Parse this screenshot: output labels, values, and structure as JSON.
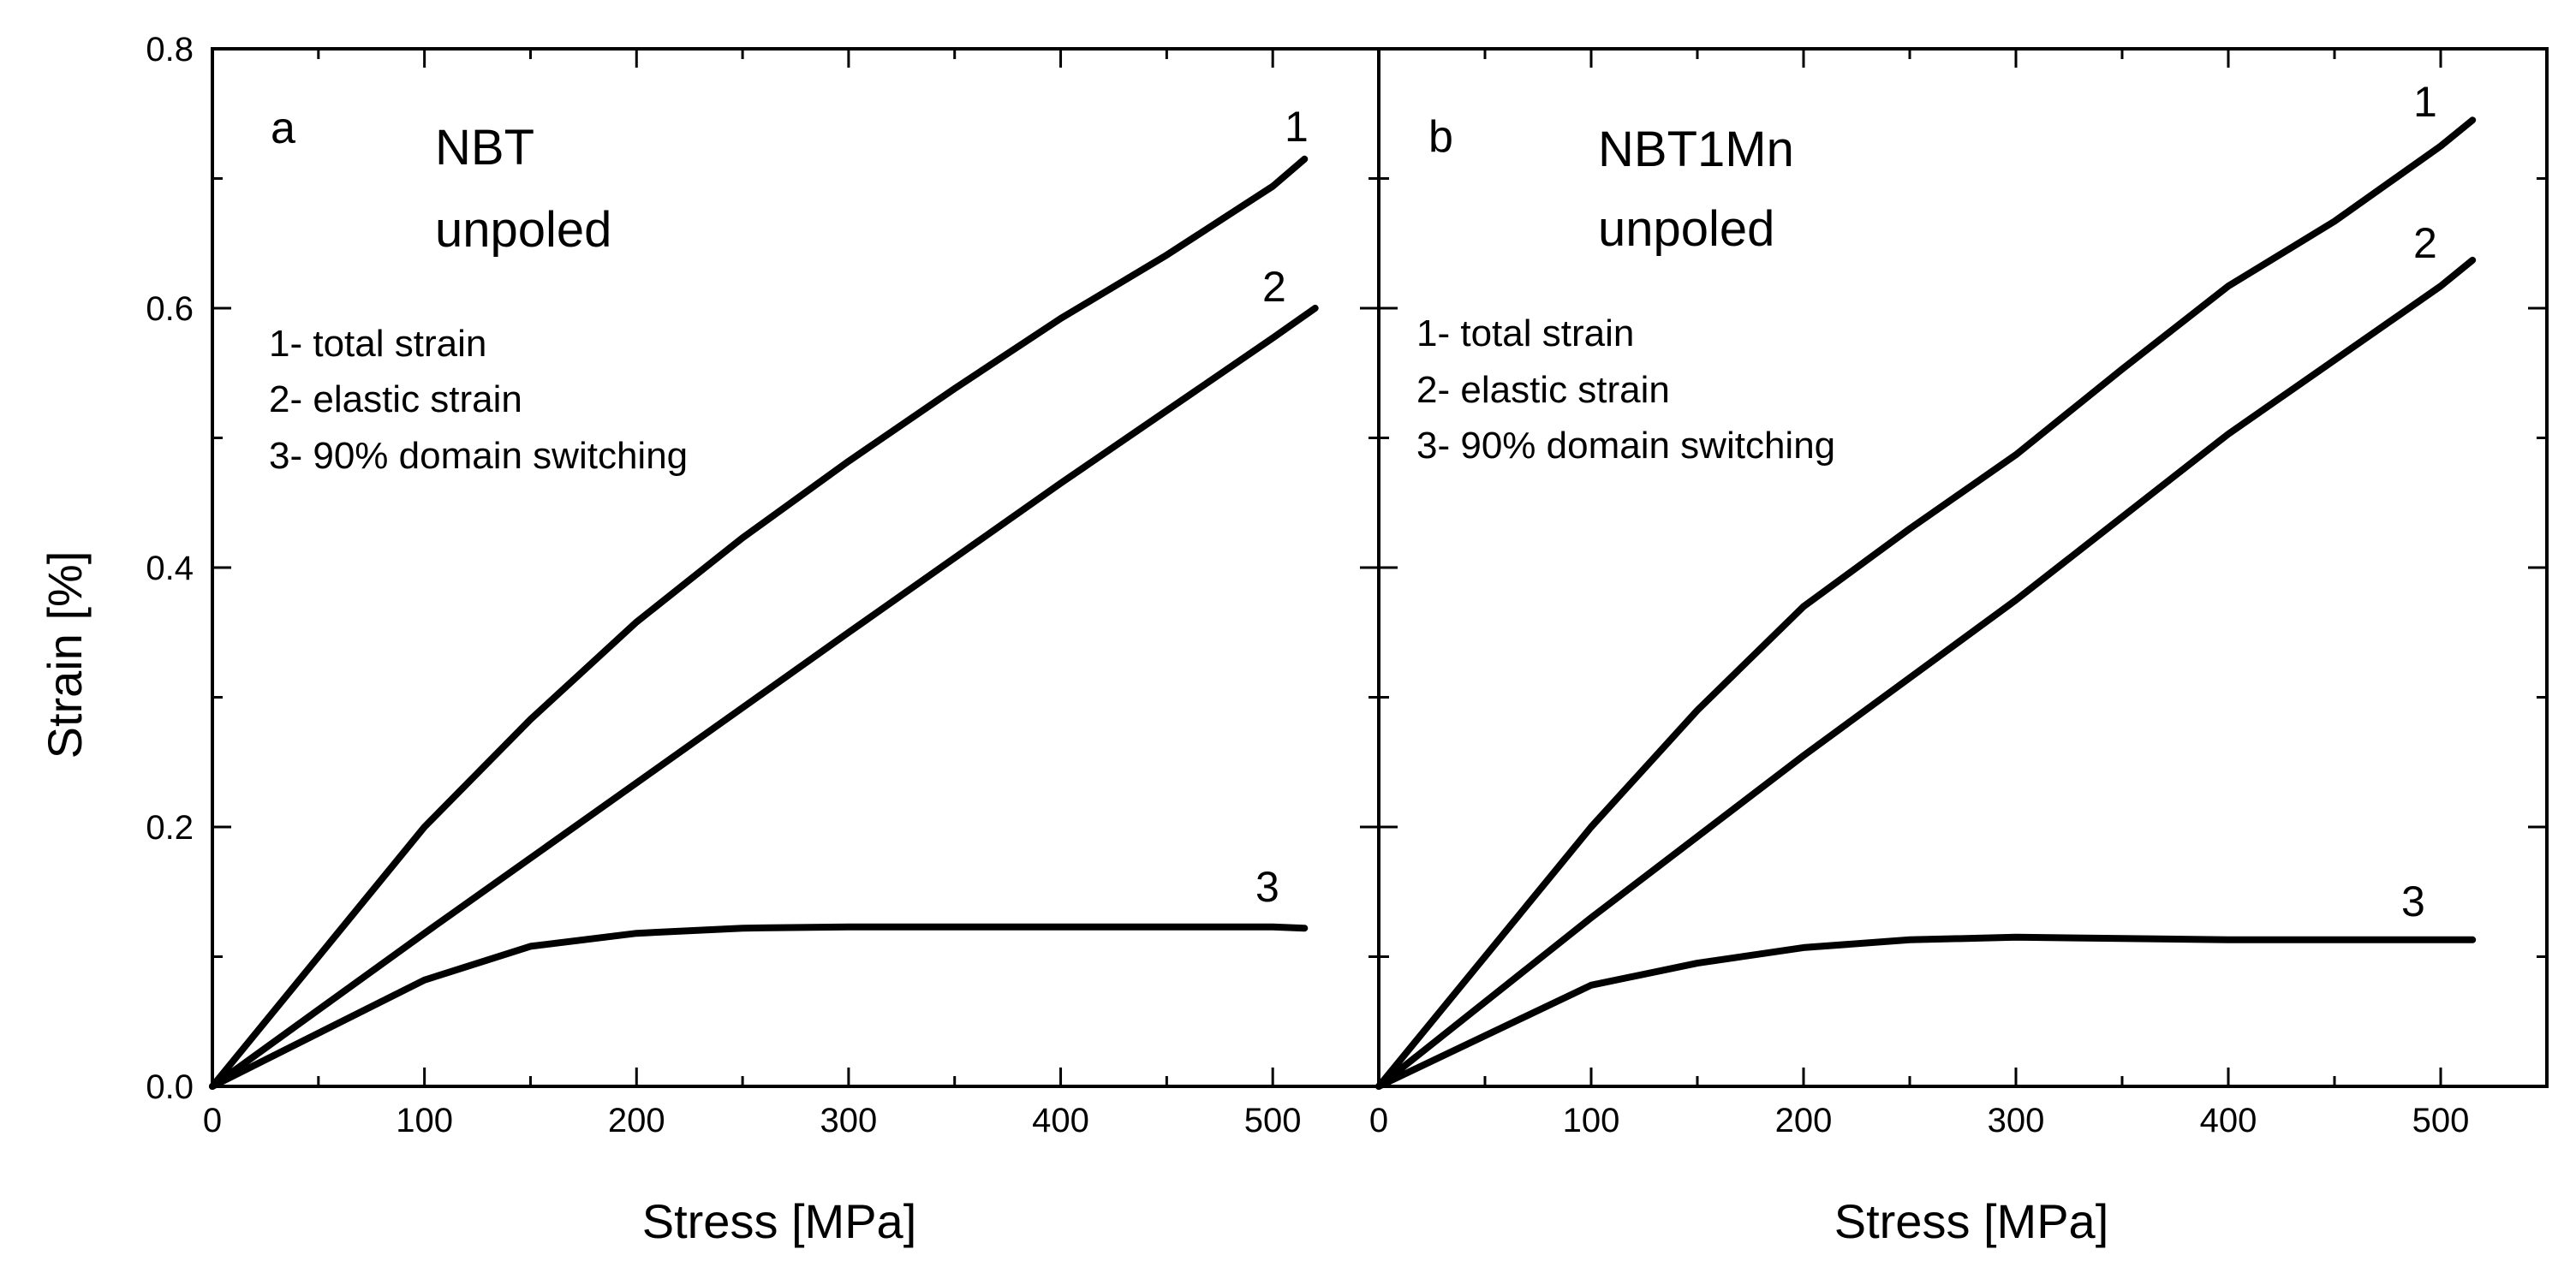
{
  "chart_data": [
    {
      "type": "line",
      "panel_letter": "a",
      "title": "NBT",
      "subtitle": "unpoled",
      "xlabel": "Stress [MPa]",
      "ylabel": "Strain [%]",
      "xlim": [
        0,
        550
      ],
      "ylim": [
        0,
        0.8
      ],
      "xticks": [
        "0",
        "100",
        "200",
        "300",
        "400",
        "500"
      ],
      "yticks": [
        "0.0",
        "0.2",
        "0.4",
        "0.6",
        "0.8"
      ],
      "legend": [
        "1- total strain",
        "2- elastic strain",
        "3- 90% domain switching"
      ],
      "series": [
        {
          "name": "1",
          "x": [
            0,
            100,
            150,
            200,
            250,
            300,
            350,
            400,
            450,
            500,
            515
          ],
          "y": [
            0,
            0.2,
            0.283,
            0.358,
            0.423,
            0.482,
            0.538,
            0.592,
            0.641,
            0.694,
            0.715
          ]
        },
        {
          "name": "2",
          "x": [
            0,
            100,
            200,
            300,
            400,
            500,
            520
          ],
          "y": [
            0,
            0.118,
            0.234,
            0.35,
            0.465,
            0.577,
            0.6
          ]
        },
        {
          "name": "3",
          "x": [
            0,
            100,
            150,
            200,
            250,
            300,
            350,
            400,
            450,
            500,
            515
          ],
          "y": [
            0,
            0.082,
            0.108,
            0.118,
            0.122,
            0.123,
            0.123,
            0.123,
            0.123,
            0.123,
            0.122
          ]
        }
      ]
    },
    {
      "type": "line",
      "panel_letter": "b",
      "title": "NBT1Mn",
      "subtitle": "unpoled",
      "xlabel": "Stress [MPa]",
      "ylabel": "",
      "xlim": [
        0,
        550
      ],
      "ylim": [
        0,
        0.8
      ],
      "xticks": [
        "0",
        "100",
        "200",
        "300",
        "400",
        "500"
      ],
      "yticks": [],
      "legend": [
        "1- total strain",
        "2- elastic strain",
        "3- 90% domain switching"
      ],
      "series": [
        {
          "name": "1",
          "x": [
            0,
            100,
            150,
            200,
            250,
            300,
            350,
            400,
            450,
            500,
            515
          ],
          "y": [
            0,
            0.2,
            0.29,
            0.37,
            0.43,
            0.487,
            0.553,
            0.617,
            0.667,
            0.725,
            0.745
          ]
        },
        {
          "name": "2",
          "x": [
            0,
            100,
            200,
            300,
            400,
            500,
            515
          ],
          "y": [
            0,
            0.13,
            0.255,
            0.375,
            0.503,
            0.617,
            0.637
          ]
        },
        {
          "name": "3",
          "x": [
            0,
            100,
            150,
            200,
            250,
            300,
            350,
            400,
            450,
            500,
            515
          ],
          "y": [
            0,
            0.078,
            0.095,
            0.107,
            0.113,
            0.115,
            0.114,
            0.113,
            0.113,
            0.113,
            0.113
          ]
        }
      ]
    }
  ]
}
